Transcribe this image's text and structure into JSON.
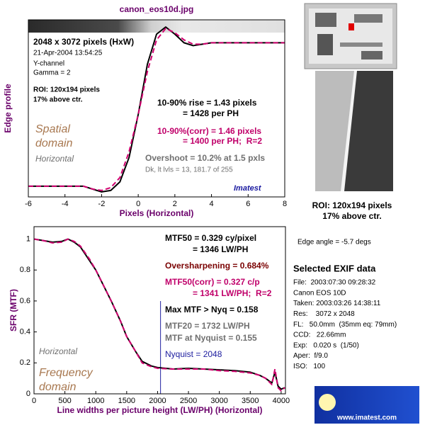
{
  "chart_data": [
    {
      "type": "line",
      "title": "canon_eos10d.jpg",
      "xlabel": "Pixels (Horizontal)",
      "ylabel": "Edge profile",
      "x": [
        -6,
        -5.5,
        -5,
        -4.5,
        -4,
        -3.5,
        -3,
        -2.5,
        -2,
        -1.5,
        -1,
        -0.5,
        0,
        0.5,
        1,
        1.5,
        2,
        2.5,
        3,
        3.5,
        4,
        4.5,
        5,
        5.5,
        6,
        6.5,
        7,
        7.5,
        8
      ],
      "series": [
        {
          "color": "#000000",
          "dash": false,
          "values": [
            0,
            0,
            0,
            0,
            0,
            0,
            0,
            -0.02,
            -0.04,
            -0.03,
            0.03,
            0.2,
            0.5,
            0.85,
            1.06,
            1.11,
            1.06,
            1.0,
            0.98,
            0.99,
            1.0,
            1.0,
            1.0,
            1.0,
            1.0,
            1.0,
            1.0,
            1.0,
            1.0
          ]
        },
        {
          "color": "#d0006f",
          "dash": true,
          "values": [
            0,
            0,
            0,
            0,
            0,
            0,
            0,
            -0.02,
            -0.03,
            -0.01,
            0.06,
            0.24,
            0.5,
            0.8,
            1.02,
            1.1,
            1.07,
            1.02,
            0.99,
            0.99,
            1.0,
            1.0,
            1.0,
            1.0,
            1.0,
            1.0,
            1.0,
            1.0,
            1.0
          ]
        }
      ],
      "xlim": [
        -6,
        8
      ],
      "ylim": [
        -0.075,
        1.16
      ],
      "xticks": [
        -6,
        -4,
        -2,
        0,
        2,
        4,
        6,
        8
      ],
      "annotations": [
        {
          "text": "2048 x 3072 pixels (HxW)",
          "color": "#000000"
        },
        {
          "text": "21-Apr-2004 13:54:25",
          "color": "#000000"
        },
        {
          "text": "Y-channel",
          "color": "#000000"
        },
        {
          "text": "Gamma = 2",
          "color": "#000000"
        },
        {
          "text": "ROI: 120x194 pixels",
          "color": "#000000"
        },
        {
          "text": "17% above ctr.",
          "color": "#000000"
        },
        {
          "text": "10-90% rise = 1.43 pixels",
          "color": "#000000"
        },
        {
          "text": "= 1428 per PH",
          "color": "#000000"
        },
        {
          "text": "10-90%(corr) = 1.46 pixels",
          "color": "#c0006a"
        },
        {
          "text": "= 1400 per PH;  R=2",
          "color": "#c0006a"
        },
        {
          "text": "Overshoot = 10.2% at 1.5 pxls",
          "color": "#707070"
        },
        {
          "text": "Dk, lt lvls = 13, 181.7 of 255",
          "color": "#707070"
        },
        {
          "text": "Spatial",
          "color": "#a87850"
        },
        {
          "text": "domain",
          "color": "#a87850"
        },
        {
          "text": "Horizontal",
          "color": "#707070"
        },
        {
          "text": "Imatest",
          "color": "#1a1aa0"
        }
      ]
    },
    {
      "type": "line",
      "xlabel": "Line widths per picture height (LW/PH) (Horizontal)",
      "ylabel": "SFR (MTF)",
      "x": [
        0,
        150,
        300,
        450,
        550,
        650,
        750,
        900,
        1000,
        1150,
        1250,
        1400,
        1500,
        1650,
        1750,
        1900,
        2000,
        2250,
        2500,
        2750,
        3000,
        3250,
        3500,
        3650,
        3750,
        3850,
        3900,
        3950,
        4000,
        4060
      ],
      "series": [
        {
          "color": "#000000",
          "dash": false,
          "values": [
            1.0,
            0.99,
            0.98,
            0.985,
            1.0,
            0.98,
            0.95,
            0.86,
            0.8,
            0.68,
            0.6,
            0.47,
            0.37,
            0.27,
            0.21,
            0.18,
            0.17,
            0.16,
            0.165,
            0.16,
            0.155,
            0.15,
            0.14,
            0.12,
            0.1,
            0.07,
            0.14,
            0.05,
            0.03,
            0.04
          ]
        },
        {
          "color": "#d0006f",
          "dash": true,
          "values": [
            1.0,
            0.99,
            0.975,
            0.98,
            1.0,
            0.985,
            0.955,
            0.87,
            0.8,
            0.68,
            0.6,
            0.47,
            0.37,
            0.27,
            0.2,
            0.175,
            0.165,
            0.16,
            0.16,
            0.16,
            0.15,
            0.145,
            0.135,
            0.12,
            0.1,
            0.06,
            0.16,
            0.04,
            0.02,
            0.04
          ]
        }
      ],
      "xlim": [
        0,
        4070
      ],
      "ylim": [
        0,
        1.08
      ],
      "xticks": [
        0,
        500,
        1000,
        1500,
        2000,
        2500,
        3000,
        3500,
        4000
      ],
      "yticks": [
        0,
        0.2,
        0.4,
        0.6,
        0.8,
        1
      ],
      "nyquist": 2048,
      "nyquist_color": "#2020a0",
      "annotations": [
        {
          "text": "MTF50 = 0.329 cy/pixel",
          "color": "#000000"
        },
        {
          "text": "= 1346 LW/PH",
          "color": "#000000"
        },
        {
          "text": "Oversharpening = 0.684%",
          "color": "#7a0000"
        },
        {
          "text": "MTF50(corr) = 0.327 c/p",
          "color": "#c0006a"
        },
        {
          "text": "= 1341 LW/PH;  R=2",
          "color": "#c0006a"
        },
        {
          "text": "Max MTF > Nyq = 0.158",
          "color": "#000000"
        },
        {
          "text": "MTF20 = 1732 LW/PH",
          "color": "#707070"
        },
        {
          "text": "MTF at Nyquist = 0.155",
          "color": "#707070"
        },
        {
          "text": "Nyquist = 2048",
          "color": "#2020a0"
        },
        {
          "text": "Horizontal",
          "color": "#707070"
        },
        {
          "text": "Frequency",
          "color": "#a87850"
        },
        {
          "text": "domain",
          "color": "#a87850"
        }
      ]
    }
  ],
  "side_panel": {
    "roi_label": "ROI: 120x194 pixels",
    "roi_position": "17% above ctr.",
    "edge_angle": "Edge angle = -5.7 degs",
    "exif_title": "Selected EXIF data",
    "exif_lines": [
      "File:  2003:07:30 09:28:32",
      "Canon EOS 10D",
      "Taken: 2003:03:26 14:38:11",
      "Res:    3072 x 2048",
      "FL:   50.0mm  (35mm eq: 79mm)",
      "CCD:   22.66mm",
      "Exp:   0.020 s  (1/50)",
      "Aper:  f/9.0",
      "ISO:   100"
    ],
    "logo_url": "www.imatest.com"
  }
}
